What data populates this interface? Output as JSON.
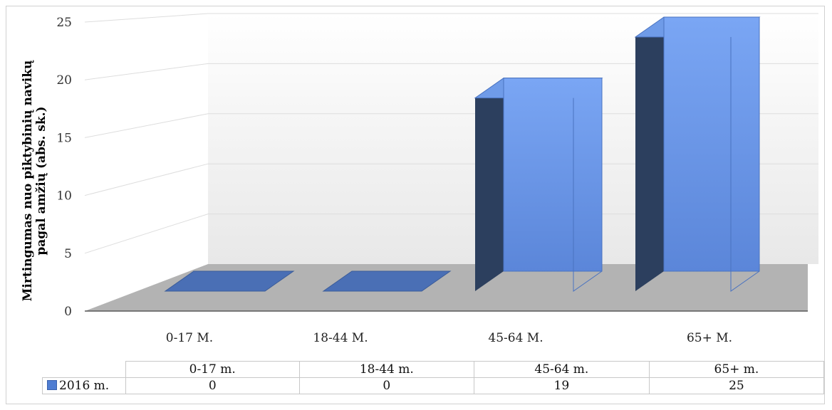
{
  "chart_data": {
    "type": "bar",
    "ylabel_lines": [
      "Mirtingumas nuo piktybinių navikų",
      "pagal amžių (abs. sk.)"
    ],
    "categories": [
      "0-17 M.",
      "18-44 M.",
      "45-64 M.",
      "65+ M."
    ],
    "table_categories": [
      "0-17 m.",
      "18-44 m.",
      "45-64 m.",
      "65+ m."
    ],
    "series": [
      {
        "name": "2016 m.",
        "values": [
          0,
          0,
          19,
          25
        ]
      }
    ],
    "yticks": [
      "0",
      "5",
      "10",
      "15",
      "20",
      "25"
    ],
    "ylim": [
      0,
      25
    ],
    "grid": true,
    "data_table": true,
    "colors": {
      "bar_front": "#6e9bef",
      "bar_side": "#2c3f5e",
      "floor": "#b3b3b3"
    }
  }
}
